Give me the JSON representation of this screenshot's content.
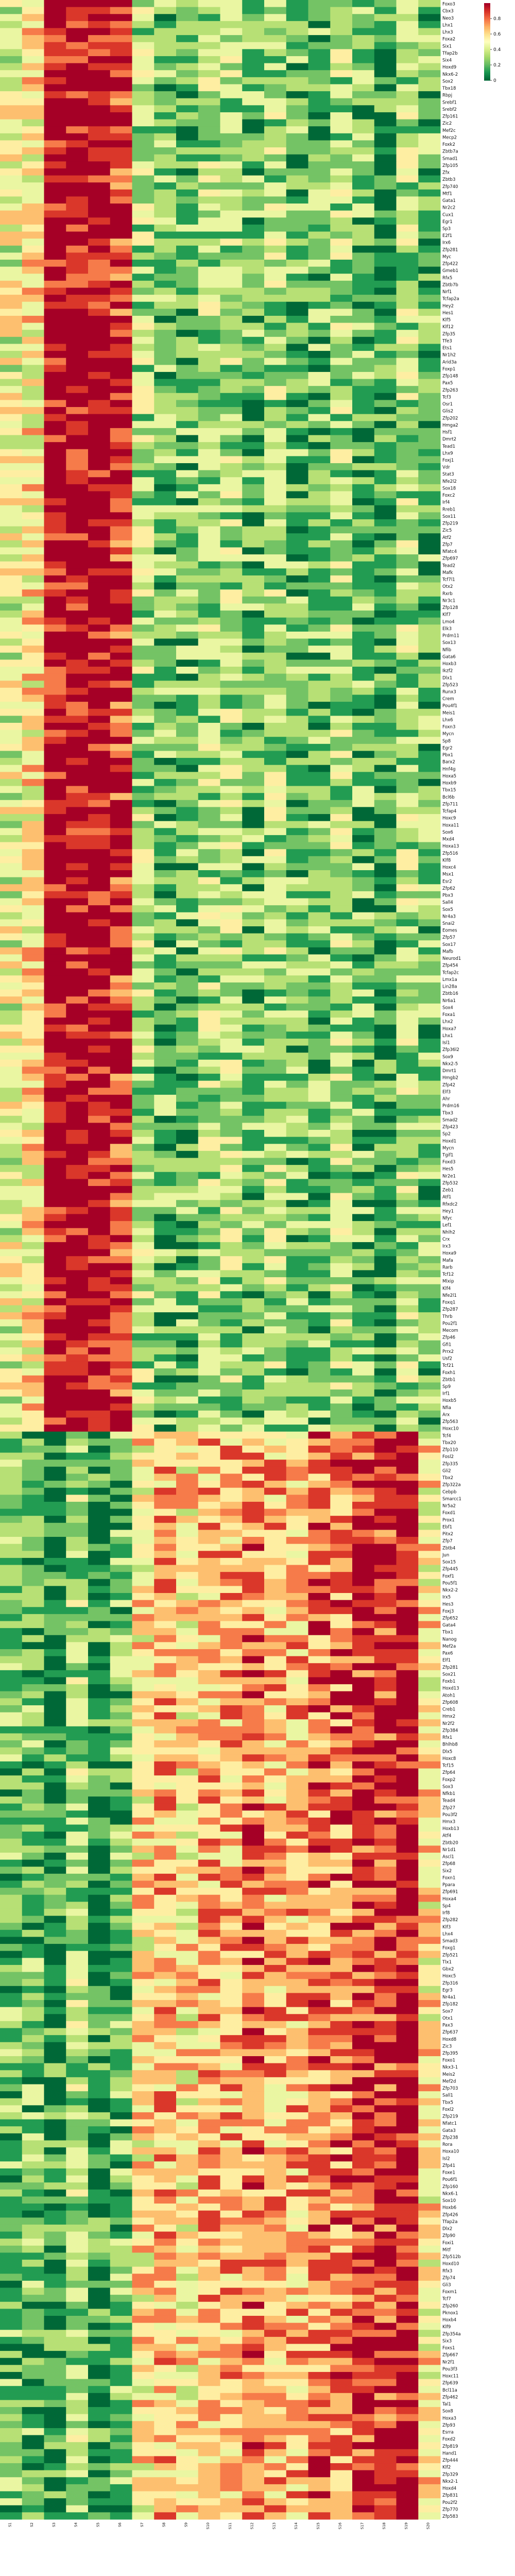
{
  "chart_data": {
    "type": "heatmap",
    "colormap": "RdYlGn_r",
    "vmin": 0,
    "vmax": 1,
    "colorbar_ticks": [
      0,
      0.2,
      0.4,
      0.6,
      0.8
    ],
    "colorbar_tick_labels": [
      "0",
      "0.2",
      "0.4",
      "0.6",
      "0.8"
    ],
    "n_rows": 389,
    "row_labels": [
      "Foxo3",
      "Cbx3",
      "Neo3",
      "Lhx1",
      "Lhx3",
      "Foxa2",
      "Six1",
      "Tfap2b",
      "Six4",
      "Hoxd9",
      "Nkx6-2",
      "Sox2",
      "Tbx18",
      "Rbpj",
      "Srebf1",
      "Srebf2",
      "Zfp161",
      "Zic2",
      "Mef2c",
      "Mecp2",
      "Foxk2",
      "Zbtb7a",
      "Smad1",
      "Zfp105",
      "Zfx",
      "Zbtb3",
      "Zfp740",
      "Mtf1",
      "Gata1",
      "Nr2c2",
      "Cux1",
      "Egr1",
      "Sp3",
      "E2f1",
      "Irx6",
      "Zfp281",
      "Myc",
      "Zfp422",
      "Gmeb1",
      "Rfx5",
      "Zbtb7b",
      "Nrf1",
      "Tcfap2a",
      "Hey2",
      "Hes1",
      "Klf5",
      "Klf12",
      "Zfp35",
      "Tfe3",
      "Ets1",
      "Nr1h2",
      "Arid3a",
      "Foxp1",
      "Zfp148",
      "Pax5",
      "Zfp263",
      "Tcf3",
      "Osr1",
      "Glis2",
      "Zfp202",
      "Hmga2",
      "Hsf1",
      "Dmrt2",
      "Tead1",
      "Lhx9",
      "Foxj1",
      "Vdr",
      "Stat3",
      "Nfe2l2",
      "Sox18",
      "Foxc2",
      "Irf4",
      "Rreb1",
      "Sox11",
      "Zfp219",
      "Zic5",
      "Atf2",
      "Zfp7",
      "Nfatc4",
      "Zfp697",
      "Tead2",
      "Mafk",
      "Tcf7l1",
      "Otx2",
      "Rxrb",
      "Nr3c1",
      "Zfp128",
      "Klf7",
      "Lmo4",
      "Elk3",
      "Prdm11",
      "Sox13",
      "Nfib",
      "Gata6",
      "Hoxb3",
      "Ikzf2",
      "Dlx1",
      "Zfp523",
      "Runx3",
      "Crem",
      "Pou4f1",
      "Meis1",
      "Lhx6",
      "Foxn3",
      "Mycn",
      "Sp8",
      "Egr2",
      "Pbx1",
      "Barx2",
      "Hnf4g",
      "Hoxa5",
      "Hoxb9",
      "Tbx15",
      "Bcl6b",
      "Zfp711",
      "Tcfap4",
      "Hoxc9",
      "Hoxa11",
      "Sox6",
      "Mxd4",
      "Hoxa13",
      "Zfp516",
      "Klf8",
      "Hoxc4",
      "Msx1",
      "Esr2",
      "Zfp62",
      "Pbx3",
      "Sall4",
      "Sox5",
      "Nr4a3",
      "Snai2",
      "Eomes",
      "Zfp57",
      "Sox17",
      "Mafb",
      "Neurod1",
      "Zfp454",
      "Tcfap2c",
      "Lmx1a",
      "Lin28a",
      "Zbtb16",
      "Nr6a1",
      "Sox4",
      "Foxa1",
      "Lhx2",
      "Hoxa7",
      "Lhx1",
      "Isl1",
      "Zfp36l2",
      "Sox9",
      "Nkx2-5",
      "Dmrt1",
      "Hmgb2",
      "Zfp42",
      "Elf3",
      "Ahr",
      "Prdm16",
      "Tbx3",
      "Smad2",
      "Zfp423",
      "Sp2",
      "Hoxd1",
      "Mycn",
      "Tgif1",
      "Foxd3",
      "Hes5",
      "Nr2e1",
      "Zfp532",
      "Zeb1",
      "Atf1",
      "Rfxdc2",
      "Hey1",
      "Nfyc",
      "Lef1",
      "Nhlh2",
      "Crx",
      "Irx3",
      "Hoxa9",
      "Mafa",
      "Rarb",
      "Tcf12",
      "Mlxip",
      "Klf4",
      "Nfe2l1",
      "Foxq1",
      "Zfp287",
      "Thrb",
      "Pou2f1",
      "Mecom",
      "Zfp46",
      "Gfi1",
      "Prrx2",
      "Usf2",
      "Tcf21",
      "Foxh1",
      "Zbtb1",
      "Sp9",
      "Irf1",
      "Hoxb5",
      "Nfia",
      "Arx",
      "Zfp563",
      "Hoxc10",
      "Tcf4",
      "Tbx20",
      "Zfp110",
      "Fosl2",
      "Zfp335",
      "Gli2",
      "Tbx2",
      "Zfp322a",
      "Cebpb",
      "Smarcc1",
      "Nr5a2",
      "Foxd1",
      "Prox1",
      "Ebf1",
      "Pitx2",
      "Zfp7",
      "Zbtb4",
      "Jun",
      "Sox15",
      "Zfp445",
      "Foxf1",
      "Pou5f1",
      "Nkx2-2",
      "Irx5",
      "Hes3",
      "Foxj3",
      "Zfp652",
      "Gata4",
      "Tbx1",
      "Nanog",
      "Mef2a",
      "Pax6",
      "Elf1",
      "Zfp281",
      "Sox21",
      "Foxb1",
      "Hoxd13",
      "Atoh1",
      "Zfp608",
      "Creb1",
      "Hmx2",
      "Nr2f2",
      "Zfp384",
      "Rfx1",
      "Bhlhb8",
      "Dlx5",
      "Hoxc8",
      "Tcf15",
      "Zfp64",
      "Foxp2",
      "Sox3",
      "Nfkb1",
      "Tead4",
      "Zfp27",
      "Pou3f2",
      "Hmx3",
      "Hoxb13",
      "Atf4",
      "Zbtb20",
      "Nr1d1",
      "Ascl1",
      "Zfp68",
      "Six2",
      "Foxn1",
      "Ppara",
      "Zfp691",
      "Hoxa4",
      "Sp4",
      "Irf8",
      "Zfp282",
      "Klf3",
      "Lhx4",
      "Smad3",
      "Foxg1",
      "Zfp521",
      "Tlx1",
      "Gbx2",
      "Hoxc5",
      "Zfp316",
      "Egr3",
      "Nr4a1",
      "Zfp182",
      "Sox7",
      "Otx1",
      "Pax3",
      "Zfp637",
      "Hoxd8",
      "Zic3",
      "Zfp395",
      "Foxo1",
      "Nkx3-1",
      "Meis2",
      "Mef2d",
      "Zfp703",
      "Sall1",
      "Tbx5",
      "Foxl2",
      "Zfp219",
      "Nfatc1",
      "Gata3",
      "Zfp238",
      "Rora",
      "Hoxa10",
      "Isl2",
      "Zfp41",
      "Foxe1",
      "Pou6f1",
      "Zfp160",
      "Nkx6-1",
      "Sox10",
      "Hoxb6",
      "Zfp426",
      "Tfap2a",
      "Dlx2",
      "Zfp90",
      "Foxi1",
      "Mitf",
      "Zfp512b",
      "Hoxd10",
      "Rfx3",
      "Zfp74",
      "Gli3",
      "Foxm1",
      "Tcf7",
      "Zfp260",
      "Pknox1",
      "Hoxb4",
      "Klf9",
      "Zfp354a",
      "Six3",
      "Foxs1",
      "Zfp667",
      "Nr2f1",
      "Pou3f3",
      "Hoxc11",
      "Zfp639",
      "Bcl11a",
      "Zfp462",
      "Tal1",
      "Sox8",
      "Hoxa3",
      "Zfp93",
      "Esrra",
      "Foxd2",
      "Zfp819",
      "Hand1",
      "Zfp444",
      "Klf2",
      "Zfp329",
      "Nkx2-1",
      "Hoxd4",
      "Zfp831",
      "Pou2f2",
      "Zfp770",
      "Zfp583"
    ],
    "n_cols": 20,
    "col_labels": [
      "S1",
      "S2",
      "S3",
      "S4",
      "S5",
      "S6",
      "S7",
      "S8",
      "S9",
      "S10",
      "S11",
      "S12",
      "S13",
      "S14",
      "S15",
      "S16",
      "S17",
      "S18",
      "S19",
      "S20"
    ],
    "data_encoding": "value levels 0-9 (value = level/9), one string of 20 digits per row; rows repeat-pattern generated",
    "row_blocks": [
      {
        "rows": 204,
        "profile": [
          4,
          5,
          9,
          9,
          9,
          8,
          3,
          2,
          2,
          3,
          3,
          2,
          3,
          2,
          2,
          3,
          2,
          1,
          3,
          2
        ]
      },
      {
        "rows": 185,
        "profile": [
          2,
          2,
          1,
          3,
          1,
          2,
          5,
          6,
          5,
          6,
          6,
          7,
          6,
          6,
          7,
          7,
          8,
          8,
          9,
          5
        ]
      }
    ]
  }
}
